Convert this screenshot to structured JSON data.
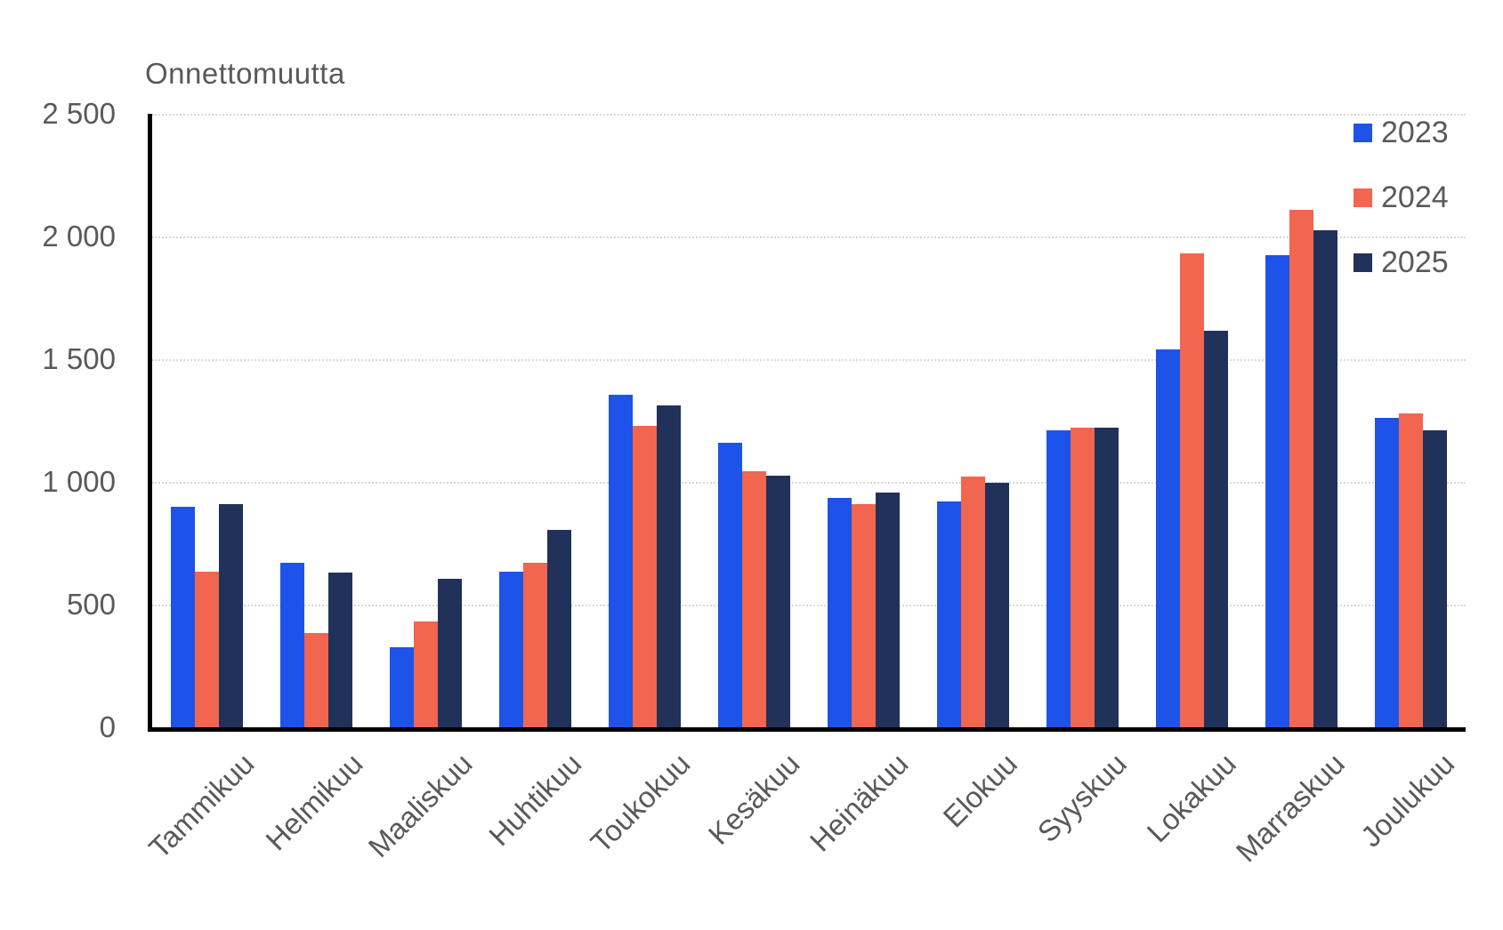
{
  "title": "Onnettomuutta",
  "colors": {
    "series_2023": "#1e53e9",
    "series_2024": "#f2654e",
    "series_2025": "#20315a",
    "text": "#595959",
    "gridline": "#d9d9d9",
    "axis": "#000000"
  },
  "y_axis": {
    "tick_labels": [
      "2 500",
      "2 000",
      "1 500",
      "1 000",
      "500",
      "0"
    ],
    "min": 0,
    "max": 2500,
    "step": 500
  },
  "legend": {
    "position": "right-top",
    "entries": [
      "2023",
      "2024",
      "2025"
    ]
  },
  "chart_data": {
    "type": "bar",
    "title": "Onnettomuutta",
    "ylabel": "Onnettomuutta",
    "xlabel": "",
    "ylim": [
      0,
      2500
    ],
    "grid": true,
    "legend_position": "right-top",
    "categories": [
      "Tammikuu",
      "Helmikuu",
      "Maaliskuu",
      "Huhtikuu",
      "Toukokuu",
      "Kesäkuu",
      "Heinäkuu",
      "Elokuu",
      "Syyskuu",
      "Lokakuu",
      "Marraskuu",
      "Joulukuu"
    ],
    "series": [
      {
        "name": "2023",
        "color": "#1e53e9",
        "values": [
          900,
          670,
          325,
          635,
          1355,
          1160,
          935,
          920,
          1210,
          1540,
          1925,
          1260
        ]
      },
      {
        "name": "2024",
        "color": "#f2654e",
        "values": [
          635,
          385,
          430,
          670,
          1230,
          1045,
          910,
          1020,
          1220,
          1930,
          2110,
          1280
        ]
      },
      {
        "name": "2025",
        "color": "#20315a",
        "values": [
          910,
          630,
          605,
          805,
          1310,
          1025,
          955,
          995,
          1220,
          1615,
          2025,
          1210
        ]
      }
    ]
  }
}
